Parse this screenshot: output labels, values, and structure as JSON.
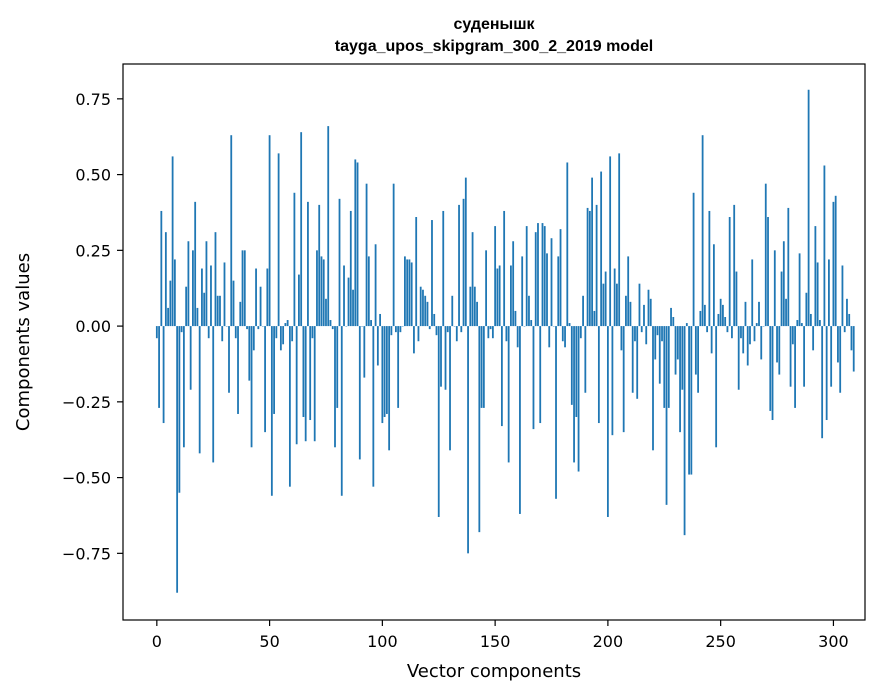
{
  "chart_data": {
    "type": "bar",
    "title": "суденышк",
    "subtitle": "tayga_upos_skipgram_300_2_2019 model",
    "xlabel": "Vector components",
    "ylabel": "Components values",
    "xlim": [
      -15,
      314
    ],
    "ylim": [
      -0.97,
      0.865
    ],
    "xticks": [
      0,
      50,
      100,
      150,
      200,
      250,
      300
    ],
    "xtick_labels": [
      "0",
      "50",
      "100",
      "150",
      "200",
      "250",
      "300"
    ],
    "yticks": [
      -0.75,
      -0.5,
      -0.25,
      0.0,
      0.25,
      0.5,
      0.75
    ],
    "ytick_labels": [
      "−0.75",
      "−0.50",
      "−0.25",
      "0.00",
      "0.25",
      "0.50",
      "0.75"
    ],
    "grid": false,
    "bar_color": "#1f77b4",
    "values": [
      -0.04,
      -0.27,
      0.38,
      -0.32,
      0.31,
      0.06,
      0.15,
      0.56,
      0.22,
      -0.88,
      -0.55,
      -0.02,
      -0.4,
      0.13,
      0.28,
      -0.21,
      0.25,
      0.41,
      0.06,
      -0.42,
      0.19,
      0.11,
      0.28,
      -0.04,
      0.2,
      -0.45,
      0.31,
      0.1,
      0.1,
      -0.05,
      0.21,
      0.0,
      -0.22,
      0.63,
      0.15,
      -0.04,
      -0.29,
      0.08,
      0.25,
      0.25,
      -0.01,
      -0.18,
      -0.4,
      -0.08,
      0.19,
      -0.01,
      0.13,
      0.0,
      -0.35,
      0.19,
      0.63,
      -0.56,
      -0.29,
      -0.04,
      0.57,
      -0.08,
      -0.06,
      0.01,
      0.02,
      -0.53,
      -0.05,
      0.44,
      -0.39,
      0.17,
      0.64,
      -0.3,
      -0.38,
      0.41,
      -0.31,
      -0.04,
      -0.38,
      0.25,
      0.4,
      0.23,
      0.22,
      0.09,
      0.66,
      0.02,
      -0.01,
      -0.4,
      -0.27,
      0.42,
      -0.56,
      0.2,
      0.0,
      0.16,
      0.38,
      0.12,
      0.55,
      0.54,
      -0.44,
      0.0,
      -0.17,
      0.47,
      0.23,
      0.02,
      -0.53,
      0.27,
      -0.13,
      0.04,
      -0.32,
      -0.3,
      -0.29,
      -0.41,
      -0.03,
      0.47,
      -0.02,
      -0.27,
      -0.02,
      0.0,
      0.23,
      0.22,
      0.22,
      0.21,
      -0.09,
      0.36,
      -0.05,
      0.13,
      0.12,
      0.1,
      0.08,
      -0.01,
      0.35,
      0.04,
      -0.03,
      -0.63,
      -0.2,
      0.38,
      -0.21,
      -0.02,
      -0.41,
      0.1,
      0.0,
      -0.05,
      0.4,
      -0.02,
      0.42,
      0.49,
      -0.75,
      0.13,
      0.31,
      0.13,
      0.08,
      -0.68,
      -0.27,
      -0.27,
      0.25,
      -0.04,
      -0.01,
      -0.04,
      0.33,
      0.19,
      0.2,
      -0.33,
      0.38,
      -0.05,
      -0.45,
      0.2,
      0.28,
      0.05,
      -0.07,
      -0.62,
      0.23,
      0.0,
      0.33,
      0.1,
      0.02,
      -0.34,
      0.31,
      0.34,
      -0.32,
      0.34,
      0.33,
      0.24,
      -0.07,
      0.29,
      0.0,
      -0.57,
      0.23,
      0.32,
      -0.05,
      -0.07,
      0.54,
      0.01,
      -0.26,
      -0.45,
      -0.3,
      -0.48,
      -0.04,
      0.1,
      -0.22,
      0.39,
      0.38,
      0.49,
      0.05,
      0.4,
      -0.32,
      0.51,
      0.14,
      0.18,
      -0.63,
      0.56,
      -0.36,
      0.19,
      0.14,
      0.57,
      -0.08,
      -0.35,
      0.1,
      0.23,
      0.08,
      -0.22,
      -0.05,
      -0.24,
      0.14,
      -0.02,
      0.07,
      -0.06,
      0.12,
      0.09,
      -0.41,
      -0.11,
      -0.03,
      -0.19,
      -0.05,
      -0.27,
      -0.59,
      -0.27,
      0.06,
      0.03,
      -0.16,
      -0.11,
      -0.35,
      -0.21,
      -0.69,
      0.01,
      -0.49,
      -0.49,
      0.44,
      -0.16,
      -0.22,
      0.05,
      0.63,
      0.07,
      -0.02,
      0.38,
      -0.09,
      0.27,
      -0.4,
      0.04,
      0.09,
      0.07,
      0.03,
      -0.02,
      0.36,
      -0.04,
      0.4,
      0.18,
      -0.21,
      -0.04,
      -0.09,
      0.08,
      -0.13,
      -0.06,
      0.22,
      -0.05,
      0.01,
      0.08,
      -0.11,
      0.0,
      0.47,
      0.36,
      -0.28,
      -0.31,
      0.25,
      -0.12,
      -0.16,
      0.18,
      0.28,
      0.09,
      0.39,
      -0.2,
      -0.06,
      -0.27,
      0.02,
      0.24,
      0.01,
      -0.2,
      0.11,
      0.78,
      0.04,
      -0.08,
      0.33,
      0.21,
      0.02,
      -0.37,
      0.53,
      -0.31,
      0.22,
      -0.2
    ],
    "extra_bar_values": [
      0.41,
      0.43,
      -0.12,
      -0.22,
      0.2,
      -0.02,
      0.09,
      0.04,
      -0.08,
      -0.15
    ]
  }
}
